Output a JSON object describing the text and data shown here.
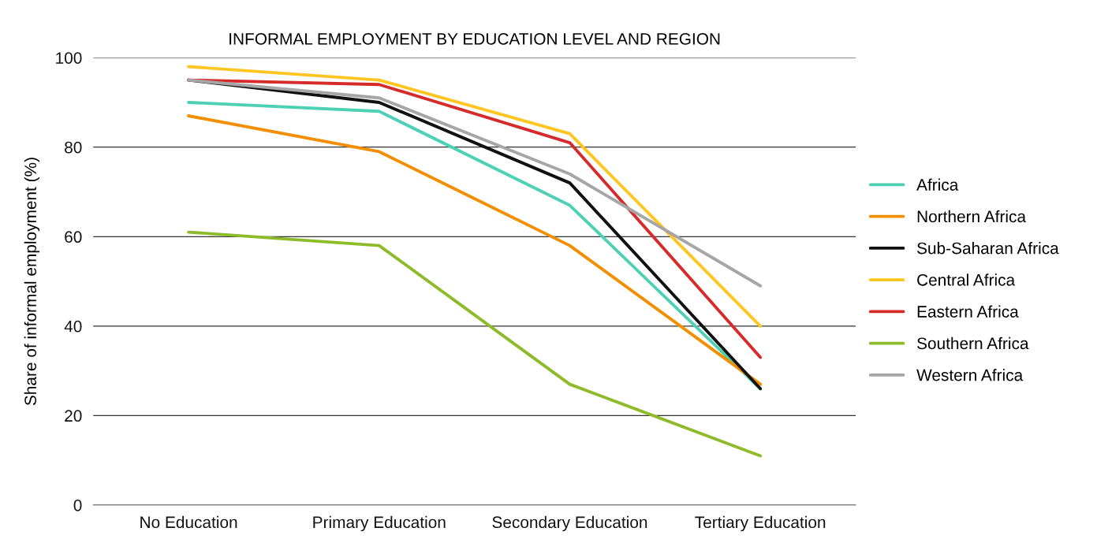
{
  "chart_data": {
    "type": "line",
    "title": "INFORMAL EMPLOYMENT BY EDUCATION LEVEL AND REGION",
    "ylabel": "Share of informal employment (%)",
    "categories": [
      "No Education",
      "Primary Education",
      "Secondary Education",
      "Tertiary Education"
    ],
    "ylim": [
      0,
      100
    ],
    "yticks": [
      0,
      20,
      40,
      60,
      80,
      100
    ],
    "grid": "y",
    "legend": "right",
    "marker": "none",
    "line_style": "solid",
    "series": [
      {
        "name": "Africa",
        "color": "#4dd0b4",
        "values": [
          90,
          88,
          67,
          26
        ]
      },
      {
        "name": "Northern Africa",
        "color": "#f28e00",
        "values": [
          87,
          79,
          58,
          27
        ]
      },
      {
        "name": "Sub-Saharan Africa",
        "color": "#111111",
        "values": [
          95,
          90,
          72,
          26
        ]
      },
      {
        "name": "Central Africa",
        "color": "#ffc520",
        "values": [
          98,
          95,
          83,
          40
        ]
      },
      {
        "name": "Eastern Africa",
        "color": "#d62b2b",
        "values": [
          95,
          94,
          81,
          33
        ]
      },
      {
        "name": "Southern Africa",
        "color": "#8dbb2a",
        "values": [
          61,
          58,
          27,
          11
        ]
      },
      {
        "name": "Western Africa",
        "color": "#a6a6a6",
        "values": [
          95,
          91,
          74,
          49
        ]
      }
    ]
  }
}
